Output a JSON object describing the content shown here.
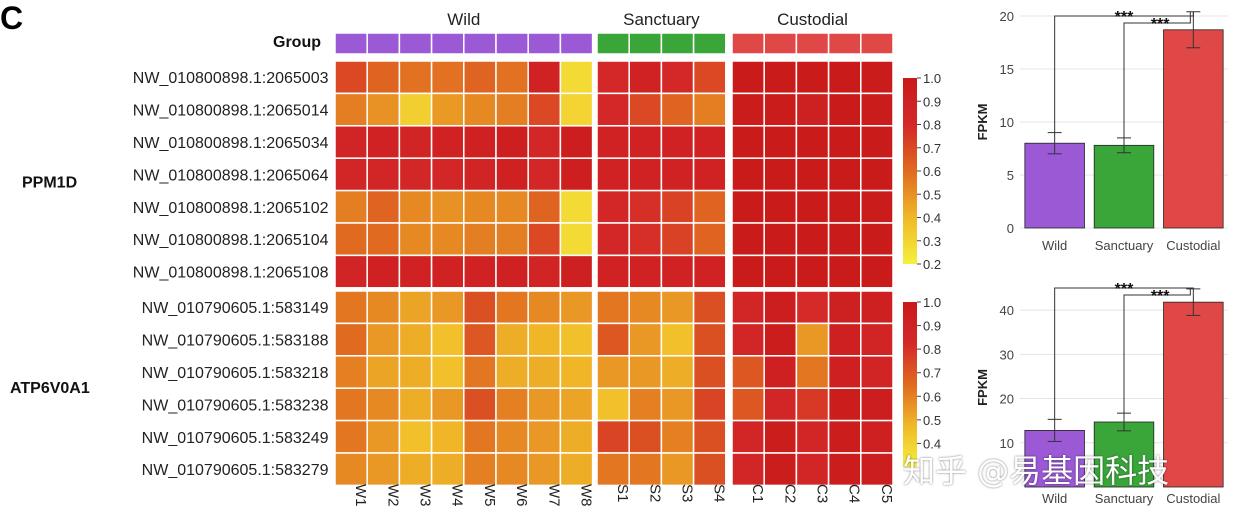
{
  "panel_label": "C",
  "watermark": "知乎 @易基因科技",
  "chart_data": [
    {
      "type": "heatmap",
      "group_row_label": "Group",
      "groups": [
        {
          "name": "Wild",
          "color": "#9b59d6",
          "columns": [
            "W1",
            "W2",
            "W3",
            "W4",
            "W5",
            "W6",
            "W7",
            "W8"
          ]
        },
        {
          "name": "Sanctuary",
          "color": "#3aa63a",
          "columns": [
            "S1",
            "S2",
            "S3",
            "S4"
          ]
        },
        {
          "name": "Custodial",
          "color": "#e04848",
          "columns": [
            "C1",
            "C2",
            "C3",
            "C4",
            "C5"
          ]
        }
      ],
      "colorscale": [
        "#f5f03c",
        "#f0b828",
        "#e06a20",
        "#d42828",
        "#c91a1a"
      ],
      "blocks": [
        {
          "gene": "PPM1D",
          "rows": [
            "NW_010800898.1:2065003",
            "NW_010800898.1:2065014",
            "NW_010800898.1:2065034",
            "NW_010800898.1:2065064",
            "NW_010800898.1:2065102",
            "NW_010800898.1:2065104",
            "NW_010800898.1:2065108"
          ],
          "values": [
            [
              0.7,
              0.62,
              0.58,
              0.58,
              0.62,
              0.58,
              0.88,
              0.28,
              0.8,
              0.88,
              0.8,
              0.7,
              0.98,
              0.98,
              0.98,
              0.98,
              0.97
            ],
            [
              0.55,
              0.5,
              0.32,
              0.48,
              0.52,
              0.55,
              0.7,
              0.3,
              0.8,
              0.7,
              0.62,
              0.55,
              0.97,
              0.97,
              0.92,
              0.98,
              0.97
            ],
            [
              0.86,
              0.88,
              0.86,
              0.88,
              0.9,
              0.93,
              0.82,
              0.95,
              0.88,
              0.88,
              0.88,
              0.88,
              0.98,
              0.98,
              0.98,
              0.98,
              0.98
            ],
            [
              0.84,
              0.84,
              0.82,
              0.82,
              0.86,
              0.9,
              0.82,
              0.93,
              0.88,
              0.88,
              0.88,
              0.88,
              0.98,
              0.98,
              0.98,
              0.98,
              0.98
            ],
            [
              0.55,
              0.62,
              0.52,
              0.5,
              0.52,
              0.52,
              0.62,
              0.28,
              0.82,
              0.78,
              0.72,
              0.62,
              0.98,
              0.98,
              0.98,
              0.98,
              0.97
            ],
            [
              0.6,
              0.6,
              0.52,
              0.52,
              0.55,
              0.55,
              0.7,
              0.28,
              0.82,
              0.78,
              0.72,
              0.62,
              0.98,
              0.98,
              0.98,
              0.98,
              0.98
            ],
            [
              0.86,
              0.9,
              0.88,
              0.88,
              0.88,
              0.9,
              0.86,
              0.92,
              0.88,
              0.88,
              0.88,
              0.88,
              0.98,
              0.98,
              0.98,
              0.98,
              0.98
            ]
          ],
          "scale_ticks": [
            1.0,
            0.9,
            0.8,
            0.7,
            0.6,
            0.5,
            0.4,
            0.3,
            0.2
          ],
          "scale_range": [
            0.2,
            1.0
          ]
        },
        {
          "gene": "ATP6V0A1",
          "rows": [
            "NW_010790605.1:583149",
            "NW_010790605.1:583188",
            "NW_010790605.1:583218",
            "NW_010790605.1:583238",
            "NW_010790605.1:583249",
            "NW_010790605.1:583279"
          ],
          "values": [
            [
              0.62,
              0.58,
              0.52,
              0.55,
              0.72,
              0.62,
              0.58,
              0.55,
              0.62,
              0.58,
              0.55,
              0.72,
              0.85,
              0.95,
              0.82,
              0.93,
              0.92
            ],
            [
              0.65,
              0.55,
              0.5,
              0.45,
              0.7,
              0.5,
              0.48,
              0.45,
              0.7,
              0.55,
              0.45,
              0.72,
              0.85,
              0.96,
              0.55,
              0.92,
              0.88
            ],
            [
              0.6,
              0.52,
              0.5,
              0.45,
              0.62,
              0.5,
              0.5,
              0.48,
              0.55,
              0.55,
              0.5,
              0.72,
              0.7,
              0.92,
              0.62,
              0.92,
              0.88
            ],
            [
              0.62,
              0.58,
              0.5,
              0.55,
              0.72,
              0.6,
              0.55,
              0.52,
              0.45,
              0.6,
              0.55,
              0.75,
              0.7,
              0.85,
              0.78,
              0.96,
              0.95
            ],
            [
              0.62,
              0.55,
              0.45,
              0.48,
              0.62,
              0.58,
              0.55,
              0.5,
              0.75,
              0.72,
              0.6,
              0.72,
              0.85,
              0.96,
              0.85,
              0.96,
              0.92
            ],
            [
              0.58,
              0.55,
              0.5,
              0.5,
              0.6,
              0.58,
              0.55,
              0.5,
              0.62,
              0.62,
              0.55,
              0.72,
              0.85,
              0.96,
              0.85,
              0.96,
              0.95
            ]
          ],
          "scale_ticks": [
            1.0,
            0.9,
            0.8,
            0.7,
            0.6,
            0.5,
            0.4
          ],
          "scale_range": [
            0.3,
            1.0
          ]
        }
      ]
    },
    {
      "type": "bar",
      "categories": [
        "Wild",
        "Sanctuary",
        "Custodial"
      ],
      "values": [
        8.0,
        7.8,
        18.7
      ],
      "errors": [
        1.0,
        0.7,
        1.7
      ],
      "colors": [
        "#9b59d6",
        "#3aa63a",
        "#e04848"
      ],
      "ylabel": "FPKM",
      "ylim": [
        0,
        20
      ],
      "yticks": [
        0,
        5,
        10,
        15,
        20
      ],
      "significance": [
        {
          "from": "Wild",
          "to": "Custodial",
          "label": "***"
        },
        {
          "from": "Sanctuary",
          "to": "Custodial",
          "label": "***"
        }
      ]
    },
    {
      "type": "bar",
      "categories": [
        "Wild",
        "Sanctuary",
        "Custodial"
      ],
      "values": [
        12.8,
        14.7,
        41.8
      ],
      "errors": [
        2.5,
        2.0,
        3.0
      ],
      "colors": [
        "#9b59d6",
        "#3aa63a",
        "#e04848"
      ],
      "ylabel": "FPKM",
      "ylim": [
        0,
        45
      ],
      "yticks": [
        10,
        20,
        30,
        40
      ],
      "significance": [
        {
          "from": "Wild",
          "to": "Custodial",
          "label": "***"
        },
        {
          "from": "Sanctuary",
          "to": "Custodial",
          "label": "***"
        }
      ]
    }
  ]
}
